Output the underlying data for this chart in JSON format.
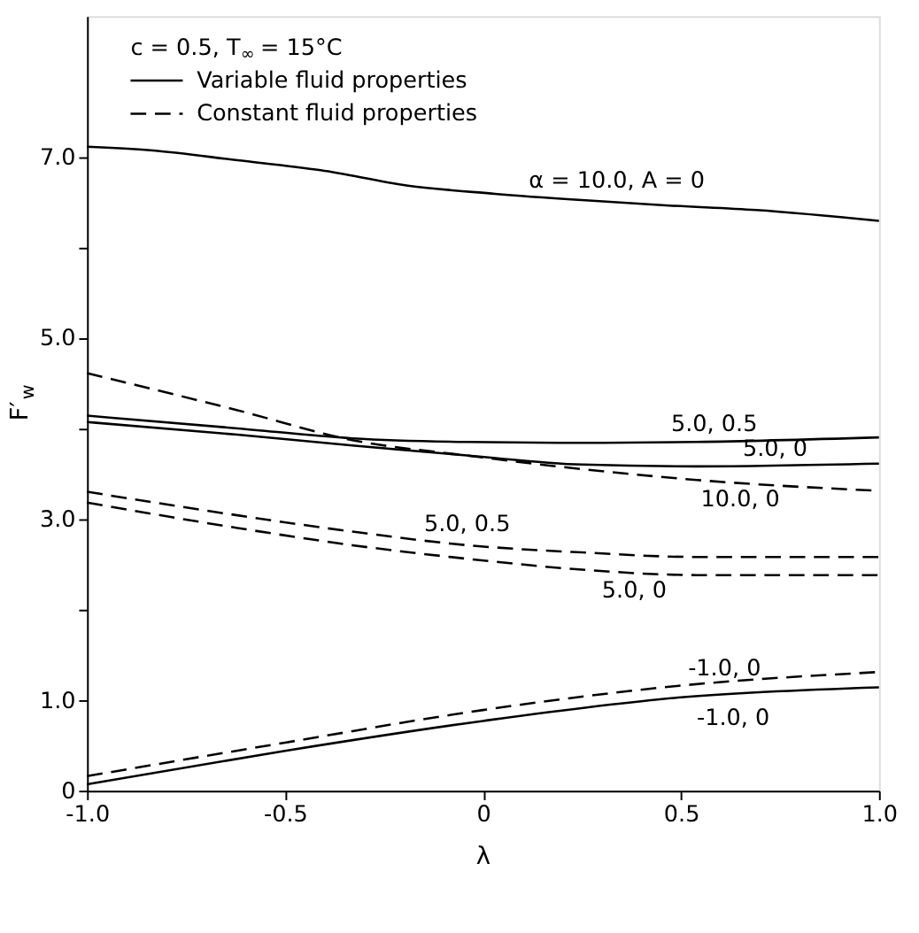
{
  "chart_data": {
    "type": "line",
    "xlabel": "λ",
    "ylabel": "F′$_{w}$",
    "legend_title": "c = 0.5, T$_{∞}$ = 15°C",
    "legend": "top left",
    "grid": false,
    "marker": "none",
    "xlim": [
      -1.0,
      1.0
    ],
    "xticks": [
      {
        "value": -1.0,
        "label": "-1.0"
      },
      -0.5,
      0,
      0.5,
      {
        "value": 1.0,
        "label": "1.0"
      }
    ],
    "ylim": [
      0,
      8.55
    ],
    "yticks": [
      0,
      {
        "value": 1,
        "label": "1.0"
      },
      {
        "value": 2,
        "label": null
      },
      {
        "value": 3,
        "label": "3.0"
      },
      {
        "value": 4,
        "label": null
      },
      {
        "value": 5,
        "label": "5.0"
      },
      {
        "value": 6,
        "label": null
      },
      {
        "value": 7,
        "label": "7.0"
      }
    ],
    "series": [
      {
        "name": "Variable fluid properties",
        "color": "#000000",
        "line_style": "solid",
        "x": [
          -1,
          -0.84,
          -0.62,
          -0.41,
          -0.19,
          0.03,
          0.25,
          0.47,
          0.69,
          1.0
        ],
        "values": [
          7.11,
          7.07,
          6.96,
          6.85,
          6.68,
          6.59,
          6.52,
          6.46,
          6.41,
          6.29
        ]
      },
      {
        "name": "Constant fluid properties",
        "color": "#000000",
        "line_style": "dashed",
        "x": [
          -1,
          -0.62,
          -0.33,
          -0.04,
          0.25,
          0.54,
          1.0
        ],
        "values": [
          4.61,
          4.2,
          3.87,
          3.7,
          3.55,
          3.43,
          3.31
        ]
      },
      {
        "color": "#000000",
        "line_style": "solid",
        "x": [
          -1,
          -0.62,
          -0.33,
          -0.04,
          0.25,
          0.54,
          1.0
        ],
        "values": [
          4.14,
          4.0,
          3.89,
          3.85,
          3.84,
          3.85,
          3.9
        ]
      },
      {
        "color": "#000000",
        "line_style": "solid",
        "x": [
          -1,
          -0.62,
          -0.33,
          -0.04,
          0.25,
          0.54,
          1.0
        ],
        "values": [
          4.07,
          3.93,
          3.81,
          3.7,
          3.6,
          3.58,
          3.61
        ]
      },
      {
        "color": "#000000",
        "line_style": "dashed",
        "x": [
          -1,
          -0.62,
          -0.33,
          -0.04,
          0.25,
          0.54,
          1.0
        ],
        "values": [
          3.3,
          3.04,
          2.86,
          2.71,
          2.63,
          2.58,
          2.58
        ]
      },
      {
        "color": "#000000",
        "line_style": "dashed",
        "x": [
          -1,
          -0.62,
          -0.33,
          -0.04,
          0.25,
          0.54,
          1.0
        ],
        "values": [
          3.18,
          2.9,
          2.71,
          2.56,
          2.44,
          2.38,
          2.38
        ]
      },
      {
        "color": "#000000",
        "line_style": "dashed",
        "x": [
          -1,
          -0.5,
          0,
          0.5,
          1.0
        ],
        "values": [
          0.16,
          0.53,
          0.89,
          1.16,
          1.31
        ]
      },
      {
        "color": "#000000",
        "line_style": "solid",
        "x": [
          -1,
          -0.5,
          0,
          0.5,
          1.0
        ],
        "values": [
          0.07,
          0.44,
          0.77,
          1.03,
          1.14
        ]
      }
    ],
    "annotations": [
      {
        "text": "α = 10.0, A = 0",
        "x": 0.25,
        "y": 6.52
      },
      {
        "text": "5.0, 0.5",
        "x": 0.54,
        "y": 3.85
      },
      {
        "text": "5.0, 0",
        "x": 0.54,
        "y": 3.58
      },
      {
        "text": "10.0, 0",
        "x": 0.54,
        "y": 3.43
      },
      {
        "text": "5.0, 0.5",
        "x": -0.04,
        "y": 2.71
      },
      {
        "text": "5.0, 0",
        "x": 0.25,
        "y": 2.44
      },
      {
        "text": "-1.0, 0",
        "x": 0.5,
        "y": 1.16
      },
      {
        "text": "-1.0, 0",
        "x": 0.5,
        "y": 1.03
      }
    ]
  }
}
